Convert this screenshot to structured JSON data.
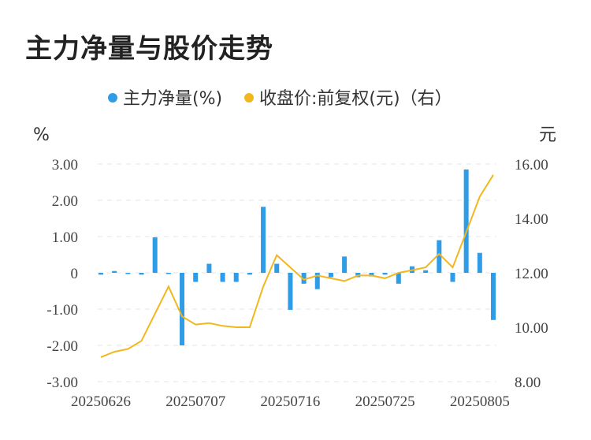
{
  "title": "主力净量与股价走势",
  "chart_data": {
    "type": "bar+line",
    "legend": [
      {
        "name": "主力净量(%)",
        "color": "#2e9ce6"
      },
      {
        "name": "收盘价:前复权(元)（右）",
        "color": "#f2b71c"
      }
    ],
    "left_unit": "%",
    "right_unit": "元",
    "y_left": {
      "min": -3,
      "max": 3,
      "ticks": [
        "3.00",
        "2.00",
        "1.00",
        "0",
        "-1.00",
        "-2.00",
        "-3.00"
      ],
      "tick_values": [
        3,
        2,
        1,
        0,
        -1,
        -2,
        -3
      ]
    },
    "y_right": {
      "min": 8,
      "max": 16,
      "ticks": [
        "16.00",
        "14.00",
        "12.00",
        "10.00",
        "8.00"
      ],
      "tick_values": [
        16,
        14,
        12,
        10,
        8
      ]
    },
    "x_tick_labels": [
      {
        "index": 0,
        "label": "20250626"
      },
      {
        "index": 7,
        "label": "20250707"
      },
      {
        "index": 14,
        "label": "20250716"
      },
      {
        "index": 21,
        "label": "20250725"
      },
      {
        "index": 28,
        "label": "20250805"
      }
    ],
    "series": [
      {
        "name": "主力净量(%)",
        "type": "bar",
        "values": [
          -0.05,
          0.05,
          -0.02,
          -0.05,
          0.98,
          -0.02,
          -2.0,
          -0.25,
          0.25,
          -0.25,
          -0.25,
          -0.05,
          1.82,
          0.25,
          -1.02,
          -0.3,
          -0.45,
          -0.12,
          0.45,
          -0.12,
          -0.1,
          -0.05,
          -0.3,
          0.18,
          0.07,
          0.9,
          -0.25,
          2.85,
          0.55,
          -1.3
        ]
      },
      {
        "name": "收盘价:前复权(元)（右）",
        "type": "line",
        "values": [
          8.9,
          9.1,
          9.2,
          9.5,
          10.5,
          11.5,
          10.4,
          10.1,
          10.15,
          10.05,
          10.0,
          10.0,
          11.5,
          12.65,
          12.2,
          11.75,
          11.9,
          11.8,
          11.7,
          11.9,
          11.9,
          11.8,
          12.0,
          12.1,
          12.2,
          12.7,
          12.2,
          13.5,
          14.8,
          15.6
        ]
      }
    ]
  }
}
